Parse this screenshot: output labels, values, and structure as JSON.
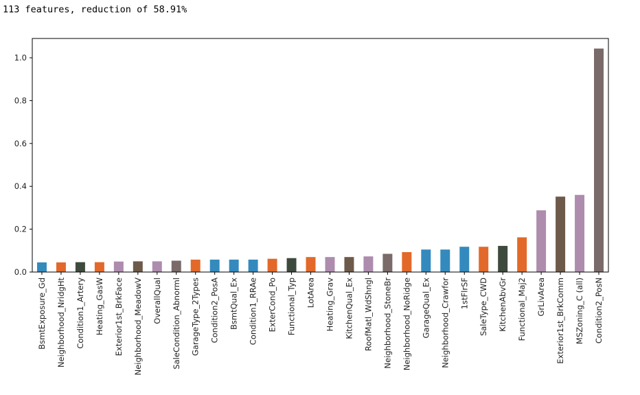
{
  "header": {
    "output_line": "113 features, reduction of 58.91%"
  },
  "chart_data": {
    "type": "bar",
    "title": "",
    "xlabel": "",
    "ylabel": "",
    "ylim": [
      0,
      1.09
    ],
    "yticks": [
      0.0,
      0.2,
      0.4,
      0.6,
      0.8,
      1.0
    ],
    "ytick_labels": [
      "0.0",
      "0.2",
      "0.4",
      "0.6",
      "0.8",
      "1.0"
    ],
    "grid": false,
    "palette": [
      "#348ABD",
      "#E2692A",
      "#3E4A3E",
      "#AD8CAE",
      "#7A6A6A"
    ],
    "categories": [
      "BsmtExposure_Gd",
      "Neighborhood_NridgHt",
      "Condition1_Artery",
      "Heating_GasW",
      "Exterior1st_BrkFace",
      "Neighborhood_MeadowV",
      "OverallQual",
      "SaleCondition_Abnorml",
      "GarageType_2Types",
      "Condition2_PosA",
      "BsmtQual_Ex",
      "Condition1_RRAe",
      "ExterCond_Po",
      "Functional_Typ",
      "LotArea",
      "Heating_Grav",
      "KitchenQual_Ex",
      "RoofMatl_WdShngl",
      "Neighborhood_StoneBr",
      "Neighborhood_NoRidge",
      "GarageQual_Ex",
      "Neighborhood_Crawfor",
      "1stFlrSF",
      "SaleType_CWD",
      "KitchenAbvGr",
      "Functional_Maj2",
      "GrLivArea",
      "Exterior1st_BrkComm",
      "MSZoning_C (all)",
      "Condition2_PosN"
    ],
    "values": [
      0.045,
      0.045,
      0.046,
      0.046,
      0.049,
      0.05,
      0.05,
      0.053,
      0.058,
      0.058,
      0.058,
      0.058,
      0.062,
      0.065,
      0.07,
      0.07,
      0.07,
      0.073,
      0.085,
      0.093,
      0.105,
      0.105,
      0.118,
      0.118,
      0.122,
      0.162,
      0.288,
      0.352,
      0.36,
      1.043
    ],
    "colors": [
      "#348ABD",
      "#E2692A",
      "#3E4A3E",
      "#E2692A",
      "#AD8CAE",
      "#6E5A4A",
      "#AD8CAE",
      "#7A6A6A",
      "#E2692A",
      "#348ABD",
      "#348ABD",
      "#348ABD",
      "#E2692A",
      "#3E4A3E",
      "#E2692A",
      "#AD8CAE",
      "#6E5A4A",
      "#AD8CAE",
      "#7A6A6A",
      "#E2692A",
      "#348ABD",
      "#348ABD",
      "#348ABD",
      "#E2692A",
      "#3E4A3E",
      "#E2692A",
      "#AD8CAE",
      "#6E5A4A",
      "#AD8CAE",
      "#7A6A6A"
    ]
  }
}
